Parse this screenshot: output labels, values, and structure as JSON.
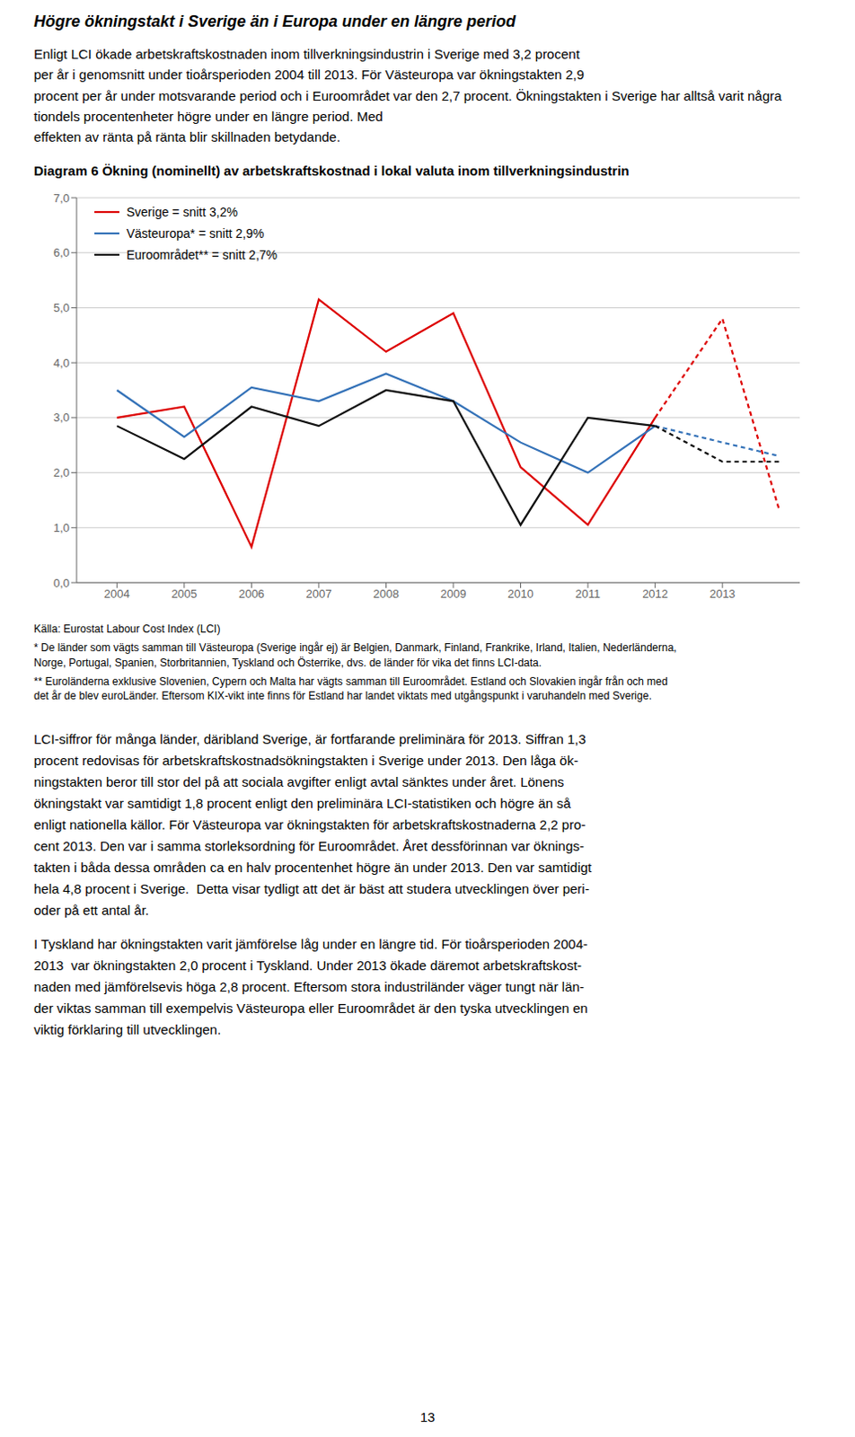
{
  "heading": "Högre ökningstakt i Sverige än i Europa under en längre period",
  "intro": [
    "Enligt LCI ökade arbetskraftskostnaden inom tillverkningsindustrin i Sverige med 3,2 procent",
    "per år i genomsnitt under tioårsperioden 2004 till 2013. För Västeuropa var ökningstakten 2,9",
    "procent per år under motsvarande period och i Euroområdet var den 2,7 procent. Ökningstakten i Sverige har alltså varit några tiondels procentenheter högre under en längre period. Med",
    "effekten av ränta på ränta blir skillnaden betydande."
  ],
  "chart_data": {
    "type": "line",
    "title": "Diagram 6 Ökning (nominellt) av arbetskraftskostnad i lokal valuta inom tillverkningsindustrin",
    "x": [
      2004,
      2005,
      2006,
      2007,
      2008,
      2009,
      2010,
      2011,
      2012,
      2013,
      2013.85
    ],
    "series": [
      {
        "name": "Sverige = snitt 3,2%",
        "color": "#dd0000",
        "line_style": "solid",
        "values": [
          3.0,
          3.2,
          0.65,
          5.15,
          4.2,
          4.9,
          2.1,
          1.05,
          3.0,
          null,
          null
        ]
      },
      {
        "name": "Västeuropa* = snitt 2,9%",
        "color": "#3472b8",
        "line_style": "solid",
        "values": [
          3.5,
          2.65,
          3.55,
          3.3,
          3.8,
          3.3,
          2.55,
          2.0,
          2.85,
          null,
          null
        ]
      },
      {
        "name": "Euroområdet** = snitt 2,7%",
        "color": "#111111",
        "line_style": "solid",
        "values": [
          2.85,
          2.25,
          3.2,
          2.85,
          3.5,
          3.3,
          1.05,
          3.0,
          2.85,
          null,
          null
        ]
      },
      {
        "color": "#dd0000",
        "line_style": "dashed",
        "values": [
          null,
          null,
          null,
          null,
          null,
          null,
          null,
          null,
          3.0,
          4.8,
          1.3
        ]
      },
      {
        "color": "#3472b8",
        "line_style": "dashed",
        "values": [
          null,
          null,
          null,
          null,
          null,
          null,
          null,
          null,
          2.85,
          2.55,
          2.3
        ]
      },
      {
        "color": "#111111",
        "line_style": "dashed",
        "values": [
          null,
          null,
          null,
          null,
          null,
          null,
          null,
          null,
          2.85,
          2.2,
          2.2
        ]
      }
    ],
    "xlim": [
      2003.4,
      2014.15
    ],
    "xticks": [
      2004,
      2005,
      2006,
      2007,
      2008,
      2009,
      2010,
      2011,
      2012,
      2013
    ],
    "ylim": [
      0.0,
      7.0
    ],
    "yticks": [
      {
        "value": 0.0,
        "label": "0,0"
      },
      {
        "value": 1.0,
        "label": "1,0"
      },
      {
        "value": 2.0,
        "label": "2,0"
      },
      {
        "value": 3.0,
        "label": "3,0"
      },
      {
        "value": 4.0,
        "label": "4,0"
      },
      {
        "value": 5.0,
        "label": "5,0"
      },
      {
        "value": 6.0,
        "label": "6,0"
      },
      {
        "value": 7.0,
        "label": "7,0"
      }
    ],
    "grid": "y",
    "legend": "upper left"
  },
  "notes": [
    "Källa: Eurostat Labour Cost Index (LCI)",
    "* De länder som vägts samman till Västeuropa (Sverige ingår ej) är Belgien, Danmark, Finland, Frankrike, Irland, Italien, Nederländerna,\nNorge, Portugal, Spanien, Storbritannien, Tyskland och Österrike, dvs. de länder för vika det finns LCI-data.",
    "** Euroländerna exklusive Slovenien, Cypern och Malta har vägts samman till Euroområdet. Estland och Slovakien ingår från och med\ndet år de blev euroLänder. Eftersom KIX-vikt inte finns för Estland har landet viktats med utgångspunkt i varuhandeln med Sverige."
  ],
  "body": [
    [
      "LCI-siffror för många länder, däribland Sverige, är fortfarande preliminära för 2013. Siffran 1,3",
      "procent redovisas för arbetskraftskostnadsökningstakten i Sverige under 2013. Den låga ök-",
      "ningstakten beror till stor del på att sociala avgifter enligt avtal sänktes under året. Lönens",
      "ökningstakt var samtidigt 1,8 procent enligt den preliminära LCI-statistiken och högre än så",
      "enligt nationella källor. För Västeuropa var ökningstakten för arbetskraftskostnaderna 2,2 pro-",
      "cent 2013. Den var i samma storleksordning för Euroområdet. Året dessförinnan var öknings-",
      "takten i båda dessa områden ca en halv procentenhet högre än under 2013. Den var samtidigt",
      "hela 4,8 procent i Sverige.  Detta visar tydligt att det är bäst att studera utvecklingen över peri-",
      "oder på ett antal år."
    ],
    [
      "I Tyskland har ökningstakten varit jämförelse låg under en längre tid. För tioårsperioden 2004-",
      "2013  var ökningstakten 2,0 procent i Tyskland. Under 2013 ökade däremot arbetskraftskost-",
      "naden med jämförelsevis höga 2,8 procent. Eftersom stora industriländer väger tungt när län-",
      "der viktas samman till exempelvis Västeuropa eller Euroområdet är den tyska utvecklingen en",
      "viktig förklaring till utvecklingen."
    ]
  ],
  "page_number": "13"
}
